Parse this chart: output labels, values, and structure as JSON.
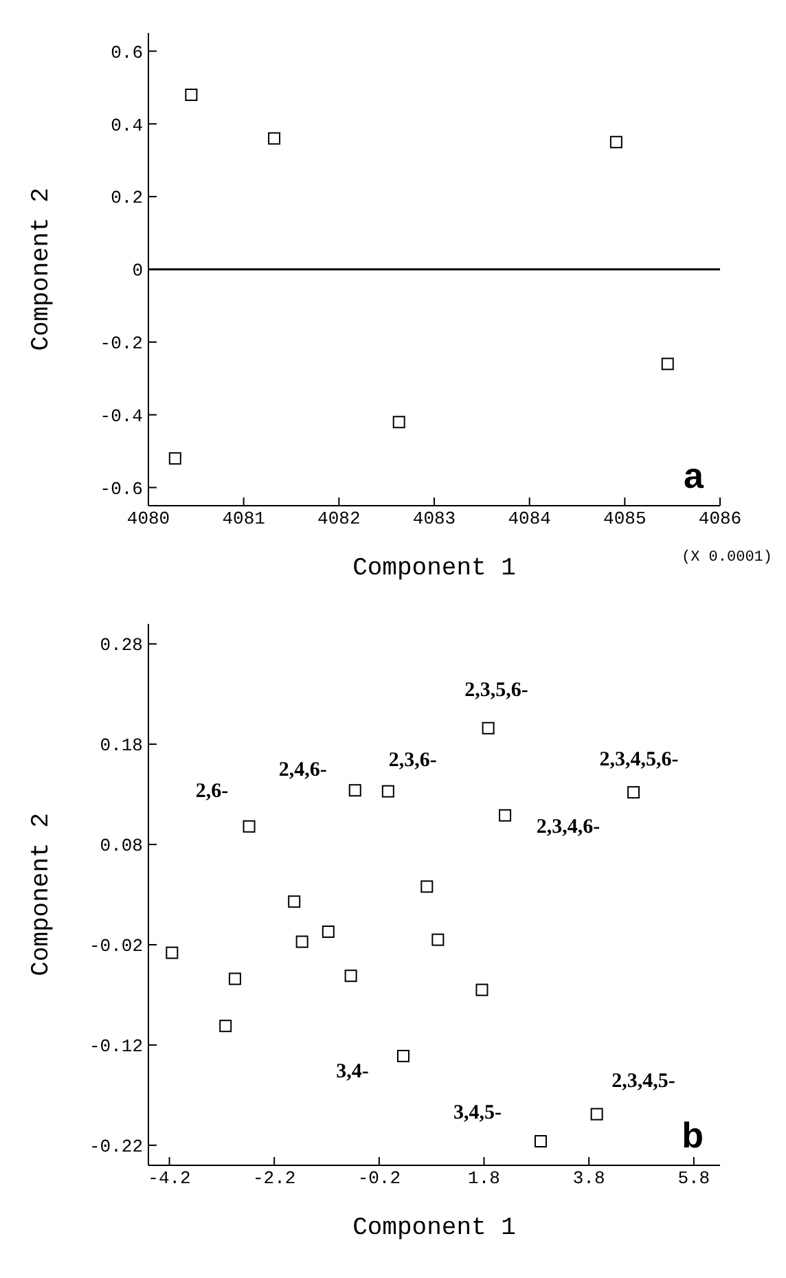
{
  "chart_data": [
    {
      "type": "scatter",
      "xlabel": "Component 1",
      "ylabel": "Component 2",
      "xlim": [
        4080,
        4086
      ],
      "ylim": [
        -0.65,
        0.65
      ],
      "xticks": [
        4080,
        4081,
        4082,
        4083,
        4084,
        4085,
        4086
      ],
      "yticks": [
        -0.6,
        -0.4,
        -0.2,
        0,
        0.2,
        0.4,
        0.6
      ],
      "marker": "square",
      "series": [
        {
          "color": "#000000",
          "x": [
            4080.45,
            4081.32,
            4084.91,
            4085.45,
            4082.63,
            4080.28
          ],
          "values": [
            0.48,
            0.36,
            0.35,
            -0.26,
            -0.42,
            -0.52
          ]
        }
      ],
      "ref_lines": [
        {
          "axis": "y",
          "value": 0,
          "color": "#000000"
        }
      ],
      "annotations": [
        "a",
        "(X 0.0001)"
      ]
    },
    {
      "type": "scatter",
      "xlabel": "Component 1",
      "ylabel": "Component 2",
      "xlim": [
        -4.6,
        6.3
      ],
      "ylim": [
        -0.24,
        0.3
      ],
      "xticks": [
        -4.2,
        -2.2,
        -0.2,
        1.8,
        3.8,
        5.8
      ],
      "yticks": [
        -0.22,
        -0.12,
        -0.02,
        0.08,
        0.18,
        0.28
      ],
      "marker": "square",
      "series": [
        {
          "color": "#000000",
          "x": [
            -4.15,
            -3.13,
            -2.95,
            -2.68,
            -1.82,
            -1.67,
            -1.17,
            -0.74,
            -0.66,
            -0.03,
            0.26,
            0.71,
            0.92,
            1.76,
            1.88,
            2.2,
            2.88,
            3.95,
            4.65
          ],
          "values": [
            -0.028,
            -0.101,
            -0.054,
            0.098,
            0.023,
            -0.017,
            -0.007,
            -0.051,
            0.134,
            0.133,
            -0.131,
            0.038,
            -0.015,
            -0.065,
            0.196,
            0.109,
            -0.216,
            -0.189,
            0.132
          ]
        }
      ],
      "annotations": [
        "b",
        {
          "text": "2,6-",
          "x": -2.68,
          "y": 0.098
        },
        {
          "text": "2,4,6-",
          "x": -0.66,
          "y": 0.134
        },
        {
          "text": "2,3,6-",
          "x": -0.03,
          "y": 0.133
        },
        {
          "text": "2,3,5,6-",
          "x": 1.88,
          "y": 0.196
        },
        {
          "text": "2,3,4,6-",
          "x": 2.2,
          "y": 0.109
        },
        {
          "text": "2,3,4,5,6-",
          "x": 4.65,
          "y": 0.132
        },
        {
          "text": "3,4-",
          "x": 0.26,
          "y": -0.131
        },
        {
          "text": "3,4,5-",
          "x": 2.88,
          "y": -0.216
        },
        {
          "text": "2,3,4,5-",
          "x": 3.95,
          "y": -0.189
        }
      ]
    }
  ]
}
